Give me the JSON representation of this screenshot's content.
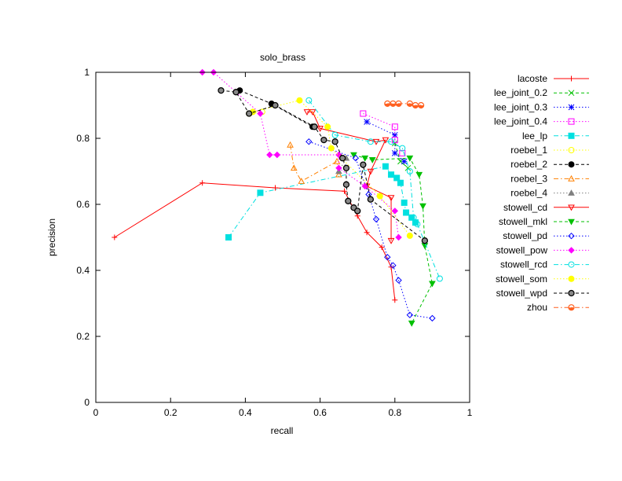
{
  "chart_data": {
    "type": "line",
    "title": "solo_brass",
    "xlabel": "recall",
    "ylabel": "precision",
    "xlim": [
      0,
      1
    ],
    "ylim": [
      0,
      1
    ],
    "xticks": [
      "0",
      "0.2",
      "0.4",
      "0.6",
      "0.8",
      "1"
    ],
    "yticks": [
      "0",
      "0.2",
      "0.4",
      "0.6",
      "0.8",
      "1"
    ],
    "grid": false,
    "legend_position": "right",
    "series": [
      {
        "name": "lacoste",
        "color": "#ff0000",
        "dash": "solid",
        "marker": "plus",
        "points": [
          [
            0.05,
            0.5
          ],
          [
            0.285,
            0.665
          ],
          [
            0.48,
            0.65
          ],
          [
            0.665,
            0.64
          ],
          [
            0.7,
            0.565
          ],
          [
            0.725,
            0.515
          ],
          [
            0.765,
            0.47
          ],
          [
            0.79,
            0.41
          ],
          [
            0.8,
            0.31
          ]
        ]
      },
      {
        "name": "lee_joint_0.2",
        "color": "#00c000",
        "dash": "dashed",
        "marker": "x",
        "points": [
          [
            0.8,
            0.785
          ],
          [
            0.815,
            0.73
          ],
          [
            0.835,
            0.71
          ]
        ]
      },
      {
        "name": "lee_joint_0.3",
        "color": "#0000ff",
        "dash": "dotted",
        "marker": "star",
        "points": [
          [
            0.725,
            0.85
          ],
          [
            0.8,
            0.81
          ],
          [
            0.8,
            0.755
          ],
          [
            0.825,
            0.73
          ]
        ]
      },
      {
        "name": "lee_joint_0.4",
        "color": "#ff00ff",
        "dash": "dotted",
        "marker": "square-open",
        "points": [
          [
            0.715,
            0.875
          ],
          [
            0.8,
            0.835
          ],
          [
            0.8,
            0.795
          ],
          [
            0.82,
            0.755
          ]
        ]
      },
      {
        "name": "lee_lp",
        "color": "#00e0e0",
        "dash": "dashdot",
        "marker": "square-filled",
        "points": [
          [
            0.355,
            0.5
          ],
          [
            0.44,
            0.635
          ],
          [
            0.775,
            0.715
          ],
          [
            0.79,
            0.69
          ],
          [
            0.805,
            0.68
          ],
          [
            0.815,
            0.665
          ],
          [
            0.825,
            0.605
          ],
          [
            0.83,
            0.575
          ],
          [
            0.845,
            0.56
          ],
          [
            0.855,
            0.545
          ]
        ]
      },
      {
        "name": "roebel_1",
        "color": "#ffff00",
        "dash": "dotted",
        "marker": "circle-open",
        "points": [
          [
            0.41,
            0.875
          ],
          [
            0.445,
            0.88
          ]
        ]
      },
      {
        "name": "roebel_2",
        "color": "#000000",
        "dash": "dashed",
        "marker": "circle-filled",
        "points": [
          [
            0.385,
            0.945
          ],
          [
            0.47,
            0.905
          ],
          [
            0.58,
            0.835
          ]
        ]
      },
      {
        "name": "roebel_3",
        "color": "#ff8000",
        "dash": "dashdot",
        "marker": "triangle-open",
        "points": [
          [
            0.52,
            0.78
          ],
          [
            0.53,
            0.71
          ],
          [
            0.55,
            0.67
          ],
          [
            0.645,
            0.73
          ],
          [
            0.65,
            0.69
          ]
        ]
      },
      {
        "name": "roebel_4",
        "color": "#808080",
        "dash": "dotted",
        "marker": "triangle-filled",
        "points": [
          [
            0.65,
            0.7
          ],
          [
            0.67,
            0.74
          ]
        ]
      },
      {
        "name": "stowell_cd",
        "color": "#ff0000",
        "dash": "solid",
        "marker": "triangle-down",
        "points": [
          [
            0.565,
            0.88
          ],
          [
            0.58,
            0.88
          ],
          [
            0.6,
            0.83
          ],
          [
            0.75,
            0.79
          ],
          [
            0.775,
            0.795
          ],
          [
            0.735,
            0.7
          ],
          [
            0.725,
            0.655
          ],
          [
            0.79,
            0.62
          ],
          [
            0.79,
            0.49
          ]
        ]
      },
      {
        "name": "stowell_mkl",
        "color": "#00c000",
        "dash": "dashed",
        "marker": "triangle-down-filled",
        "points": [
          [
            0.69,
            0.75
          ],
          [
            0.72,
            0.74
          ],
          [
            0.74,
            0.735
          ],
          [
            0.84,
            0.74
          ],
          [
            0.865,
            0.69
          ],
          [
            0.875,
            0.595
          ],
          [
            0.88,
            0.475
          ],
          [
            0.9,
            0.36
          ],
          [
            0.845,
            0.24
          ]
        ]
      },
      {
        "name": "stowell_pd",
        "color": "#0000ff",
        "dash": "dotted",
        "marker": "diamond-open",
        "points": [
          [
            0.57,
            0.79
          ],
          [
            0.695,
            0.74
          ],
          [
            0.73,
            0.63
          ],
          [
            0.75,
            0.555
          ],
          [
            0.78,
            0.44
          ],
          [
            0.795,
            0.415
          ],
          [
            0.81,
            0.37
          ],
          [
            0.84,
            0.265
          ],
          [
            0.9,
            0.255
          ]
        ]
      },
      {
        "name": "stowell_pow",
        "color": "#ff00ff",
        "dash": "dotted",
        "marker": "diamond-filled",
        "points": [
          [
            0.285,
            1.0
          ],
          [
            0.315,
            1.0
          ],
          [
            0.44,
            0.875
          ],
          [
            0.465,
            0.75
          ],
          [
            0.485,
            0.75
          ],
          [
            0.65,
            0.75
          ],
          [
            0.65,
            0.71
          ],
          [
            0.72,
            0.655
          ],
          [
            0.8,
            0.58
          ],
          [
            0.81,
            0.5
          ]
        ]
      },
      {
        "name": "stowell_rcd",
        "color": "#00e0e0",
        "dash": "dashdot",
        "marker": "circle-open",
        "points": [
          [
            0.57,
            0.915
          ],
          [
            0.64,
            0.81
          ],
          [
            0.735,
            0.79
          ],
          [
            0.79,
            0.79
          ],
          [
            0.82,
            0.77
          ],
          [
            0.84,
            0.7
          ],
          [
            0.85,
            0.56
          ],
          [
            0.86,
            0.54
          ],
          [
            0.92,
            0.375
          ]
        ]
      },
      {
        "name": "stowell_som",
        "color": "#ffff00",
        "dash": "dotted",
        "marker": "circle-filled",
        "points": [
          [
            0.42,
            0.88
          ],
          [
            0.545,
            0.915
          ],
          [
            0.62,
            0.835
          ],
          [
            0.63,
            0.77
          ],
          [
            0.76,
            0.625
          ],
          [
            0.84,
            0.505
          ]
        ]
      },
      {
        "name": "stowell_wpd",
        "color": "#000000",
        "dash": "dashed",
        "marker": "circle-dot",
        "points": [
          [
            0.335,
            0.945
          ],
          [
            0.375,
            0.94
          ],
          [
            0.41,
            0.875
          ],
          [
            0.48,
            0.9
          ],
          [
            0.585,
            0.835
          ],
          [
            0.61,
            0.795
          ],
          [
            0.64,
            0.79
          ],
          [
            0.66,
            0.74
          ],
          [
            0.67,
            0.71
          ],
          [
            0.67,
            0.66
          ],
          [
            0.675,
            0.61
          ],
          [
            0.69,
            0.59
          ],
          [
            0.7,
            0.58
          ],
          [
            0.715,
            0.72
          ],
          [
            0.735,
            0.615
          ],
          [
            0.88,
            0.49
          ]
        ]
      },
      {
        "name": "zhou",
        "color": "#ff6020",
        "dash": "dashdot",
        "marker": "circle-half",
        "points": [
          [
            0.78,
            0.905
          ],
          [
            0.795,
            0.905
          ],
          [
            0.81,
            0.905
          ],
          [
            0.84,
            0.905
          ],
          [
            0.855,
            0.9
          ],
          [
            0.87,
            0.9
          ]
        ]
      }
    ]
  }
}
